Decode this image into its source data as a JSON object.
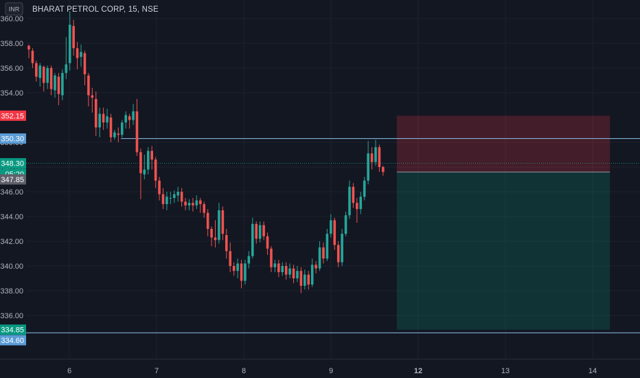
{
  "header": {
    "symbol_title": "BHARAT PETROL CORP, 15, NSE",
    "currency": "INR"
  },
  "colors": {
    "up": "#26a69a",
    "down": "#ef5350",
    "background": "#131722",
    "grid": "#1e222d",
    "level_line": "#8fc3f0",
    "stop_zone": "rgba(242,54,69,0.22)",
    "target_zone": "rgba(8,153,129,0.22)"
  },
  "price_tags": [
    {
      "label": "352.15",
      "value": 352.15,
      "color": "#f23645"
    },
    {
      "label": "350.30",
      "value": 350.3,
      "color": "#5b9cd6"
    },
    {
      "label": "348.30",
      "value": 348.3,
      "color": "#089981"
    },
    {
      "label": "05:20",
      "value": 347.45,
      "color": "#089981"
    },
    {
      "label": "347.85",
      "value": 347.0,
      "color": "#5d606b"
    },
    {
      "label": "334.85",
      "value": 334.85,
      "color": "#089981"
    },
    {
      "label": "334.60",
      "value": 334.0,
      "color": "#5b9cd6"
    }
  ],
  "chart_data": {
    "type": "candlestick",
    "title": "BHARAT PETROL CORP, 15, NSE",
    "ylim": [
      332.5,
      361.5
    ],
    "y_ticks": [
      "336.00",
      "338.00",
      "340.00",
      "342.00",
      "344.00",
      "346.00",
      "348.00",
      "350.00",
      "354.00",
      "356.00",
      "358.00",
      "360.00"
    ],
    "x_ticks": [
      {
        "label": "6",
        "day": 6
      },
      {
        "label": "7",
        "day": 7
      },
      {
        "label": "8",
        "day": 8
      },
      {
        "label": "9",
        "day": 9
      },
      {
        "label": "12",
        "day": 12
      },
      {
        "label": "13",
        "day": 13
      },
      {
        "label": "14",
        "day": 14
      }
    ],
    "horizontal_levels": [
      350.3,
      334.6
    ],
    "short_position": {
      "entry": 347.6,
      "stop": 352.15,
      "target": 334.85,
      "start_index": 95,
      "end_index": 154
    },
    "candles": [
      [
        357.8,
        357.5,
        357.9,
        356.8
      ],
      [
        357.4,
        356.4,
        357.6,
        356.0
      ],
      [
        356.4,
        355.3,
        356.6,
        354.9
      ],
      [
        355.2,
        356.2,
        356.4,
        354.5
      ],
      [
        356.1,
        354.8,
        356.2,
        354.1
      ],
      [
        354.8,
        356.0,
        356.2,
        354.3
      ],
      [
        356.0,
        354.3,
        356.2,
        353.8
      ],
      [
        354.2,
        355.4,
        355.6,
        353.6
      ],
      [
        355.3,
        353.9,
        355.6,
        353.0
      ],
      [
        353.8,
        355.6,
        355.9,
        353.4
      ],
      [
        355.6,
        356.3,
        358.5,
        355.1
      ],
      [
        356.4,
        359.5,
        360.6,
        355.8
      ],
      [
        359.4,
        357.6,
        359.9,
        357.0
      ],
      [
        357.6,
        356.8,
        358.1,
        355.9
      ],
      [
        356.9,
        357.3,
        357.9,
        356.1
      ],
      [
        357.2,
        355.5,
        357.4,
        354.6
      ],
      [
        355.4,
        353.8,
        355.6,
        352.9
      ],
      [
        353.8,
        353.6,
        354.4,
        352.4
      ],
      [
        353.5,
        351.2,
        354.1,
        350.5
      ],
      [
        351.2,
        352.3,
        352.8,
        350.4
      ],
      [
        352.3,
        351.6,
        352.8,
        351.0
      ],
      [
        351.6,
        352.1,
        352.7,
        351.1
      ],
      [
        352.0,
        350.4,
        352.3,
        350.0
      ],
      [
        350.4,
        350.8,
        351.0,
        350.2
      ],
      [
        350.7,
        350.6,
        351.2,
        350.0
      ],
      [
        350.6,
        351.6,
        351.8,
        350.4
      ],
      [
        351.6,
        352.2,
        352.5,
        351.1
      ],
      [
        352.1,
        351.8,
        352.3,
        351.1
      ],
      [
        351.8,
        352.5,
        353.1,
        351.4
      ],
      [
        352.5,
        349.2,
        353.5,
        348.9
      ],
      [
        349.2,
        347.5,
        349.5,
        345.4
      ],
      [
        347.4,
        347.8,
        349.0,
        347.0
      ],
      [
        347.8,
        349.3,
        349.6,
        347.4
      ],
      [
        349.3,
        348.6,
        349.7,
        347.8
      ],
      [
        348.6,
        346.9,
        348.8,
        346.3
      ],
      [
        346.9,
        345.8,
        347.2,
        345.3
      ],
      [
        345.8,
        345.0,
        346.3,
        344.6
      ],
      [
        345.0,
        345.6,
        346.0,
        344.5
      ],
      [
        345.5,
        345.5,
        346.0,
        345.0
      ],
      [
        345.5,
        345.8,
        346.1,
        345.1
      ],
      [
        345.7,
        346.0,
        346.4,
        345.2
      ],
      [
        346.0,
        345.2,
        346.3,
        344.8
      ],
      [
        345.2,
        344.9,
        345.5,
        344.5
      ],
      [
        344.9,
        345.1,
        345.4,
        344.5
      ],
      [
        345.1,
        344.9,
        345.5,
        344.4
      ],
      [
        344.9,
        345.3,
        345.7,
        344.6
      ],
      [
        345.3,
        345.0,
        345.5,
        344.3
      ],
      [
        345.0,
        344.3,
        345.2,
        343.9
      ],
      [
        344.3,
        343.0,
        344.6,
        342.4
      ],
      [
        343.0,
        342.3,
        343.2,
        341.6
      ],
      [
        342.3,
        342.1,
        343.7,
        341.5
      ],
      [
        342.1,
        344.5,
        345.1,
        341.8
      ],
      [
        344.5,
        342.6,
        344.8,
        342.1
      ],
      [
        342.5,
        341.2,
        343.0,
        340.6
      ],
      [
        341.2,
        340.0,
        341.9,
        339.5
      ],
      [
        340.0,
        339.6,
        340.3,
        339.2
      ],
      [
        339.6,
        340.2,
        340.6,
        339.0
      ],
      [
        340.2,
        338.8,
        340.5,
        338.2
      ],
      [
        338.8,
        340.2,
        340.5,
        338.5
      ],
      [
        340.2,
        340.8,
        341.2,
        339.8
      ],
      [
        340.8,
        343.4,
        343.9,
        340.6
      ],
      [
        343.4,
        342.2,
        343.6,
        341.8
      ],
      [
        342.2,
        343.3,
        343.6,
        341.9
      ],
      [
        343.3,
        342.4,
        343.6,
        342.1
      ],
      [
        342.4,
        341.4,
        342.7,
        340.9
      ],
      [
        341.4,
        339.9,
        341.6,
        339.5
      ],
      [
        339.9,
        340.2,
        340.5,
        339.5
      ],
      [
        340.2,
        339.5,
        340.5,
        339.1
      ],
      [
        339.5,
        340.0,
        340.3,
        339.2
      ],
      [
        340.0,
        339.3,
        340.3,
        338.9
      ],
      [
        339.3,
        339.8,
        340.2,
        339.0
      ],
      [
        339.8,
        339.0,
        340.1,
        338.6
      ],
      [
        339.0,
        339.6,
        340.0,
        338.7
      ],
      [
        339.6,
        338.4,
        339.9,
        337.8
      ],
      [
        338.4,
        339.3,
        339.7,
        338.1
      ],
      [
        339.3,
        338.5,
        339.6,
        338.1
      ],
      [
        338.5,
        340.1,
        340.6,
        338.3
      ],
      [
        340.1,
        339.8,
        340.4,
        339.4
      ],
      [
        339.8,
        341.5,
        342.0,
        339.6
      ],
      [
        341.5,
        340.6,
        341.9,
        340.2
      ],
      [
        340.6,
        342.6,
        343.0,
        340.4
      ],
      [
        342.6,
        343.7,
        344.2,
        342.3
      ],
      [
        343.7,
        341.7,
        343.9,
        341.3
      ],
      [
        341.7,
        340.3,
        342.0,
        339.9
      ],
      [
        340.3,
        342.6,
        343.0,
        340.0
      ],
      [
        342.6,
        344.1,
        344.4,
        342.4
      ],
      [
        344.1,
        346.4,
        346.9,
        343.8
      ],
      [
        346.4,
        345.1,
        346.7,
        344.7
      ],
      [
        345.1,
        344.6,
        345.5,
        343.5
      ],
      [
        344.6,
        345.6,
        346.0,
        344.2
      ],
      [
        345.6,
        346.9,
        347.2,
        345.3
      ],
      [
        346.9,
        349.1,
        350.1,
        346.6
      ],
      [
        349.1,
        348.4,
        349.6,
        347.8
      ],
      [
        348.4,
        349.6,
        350.2,
        348.1
      ],
      [
        349.6,
        348.0,
        349.8,
        347.6
      ],
      [
        348.0,
        347.6,
        348.1,
        347.3
      ]
    ]
  }
}
